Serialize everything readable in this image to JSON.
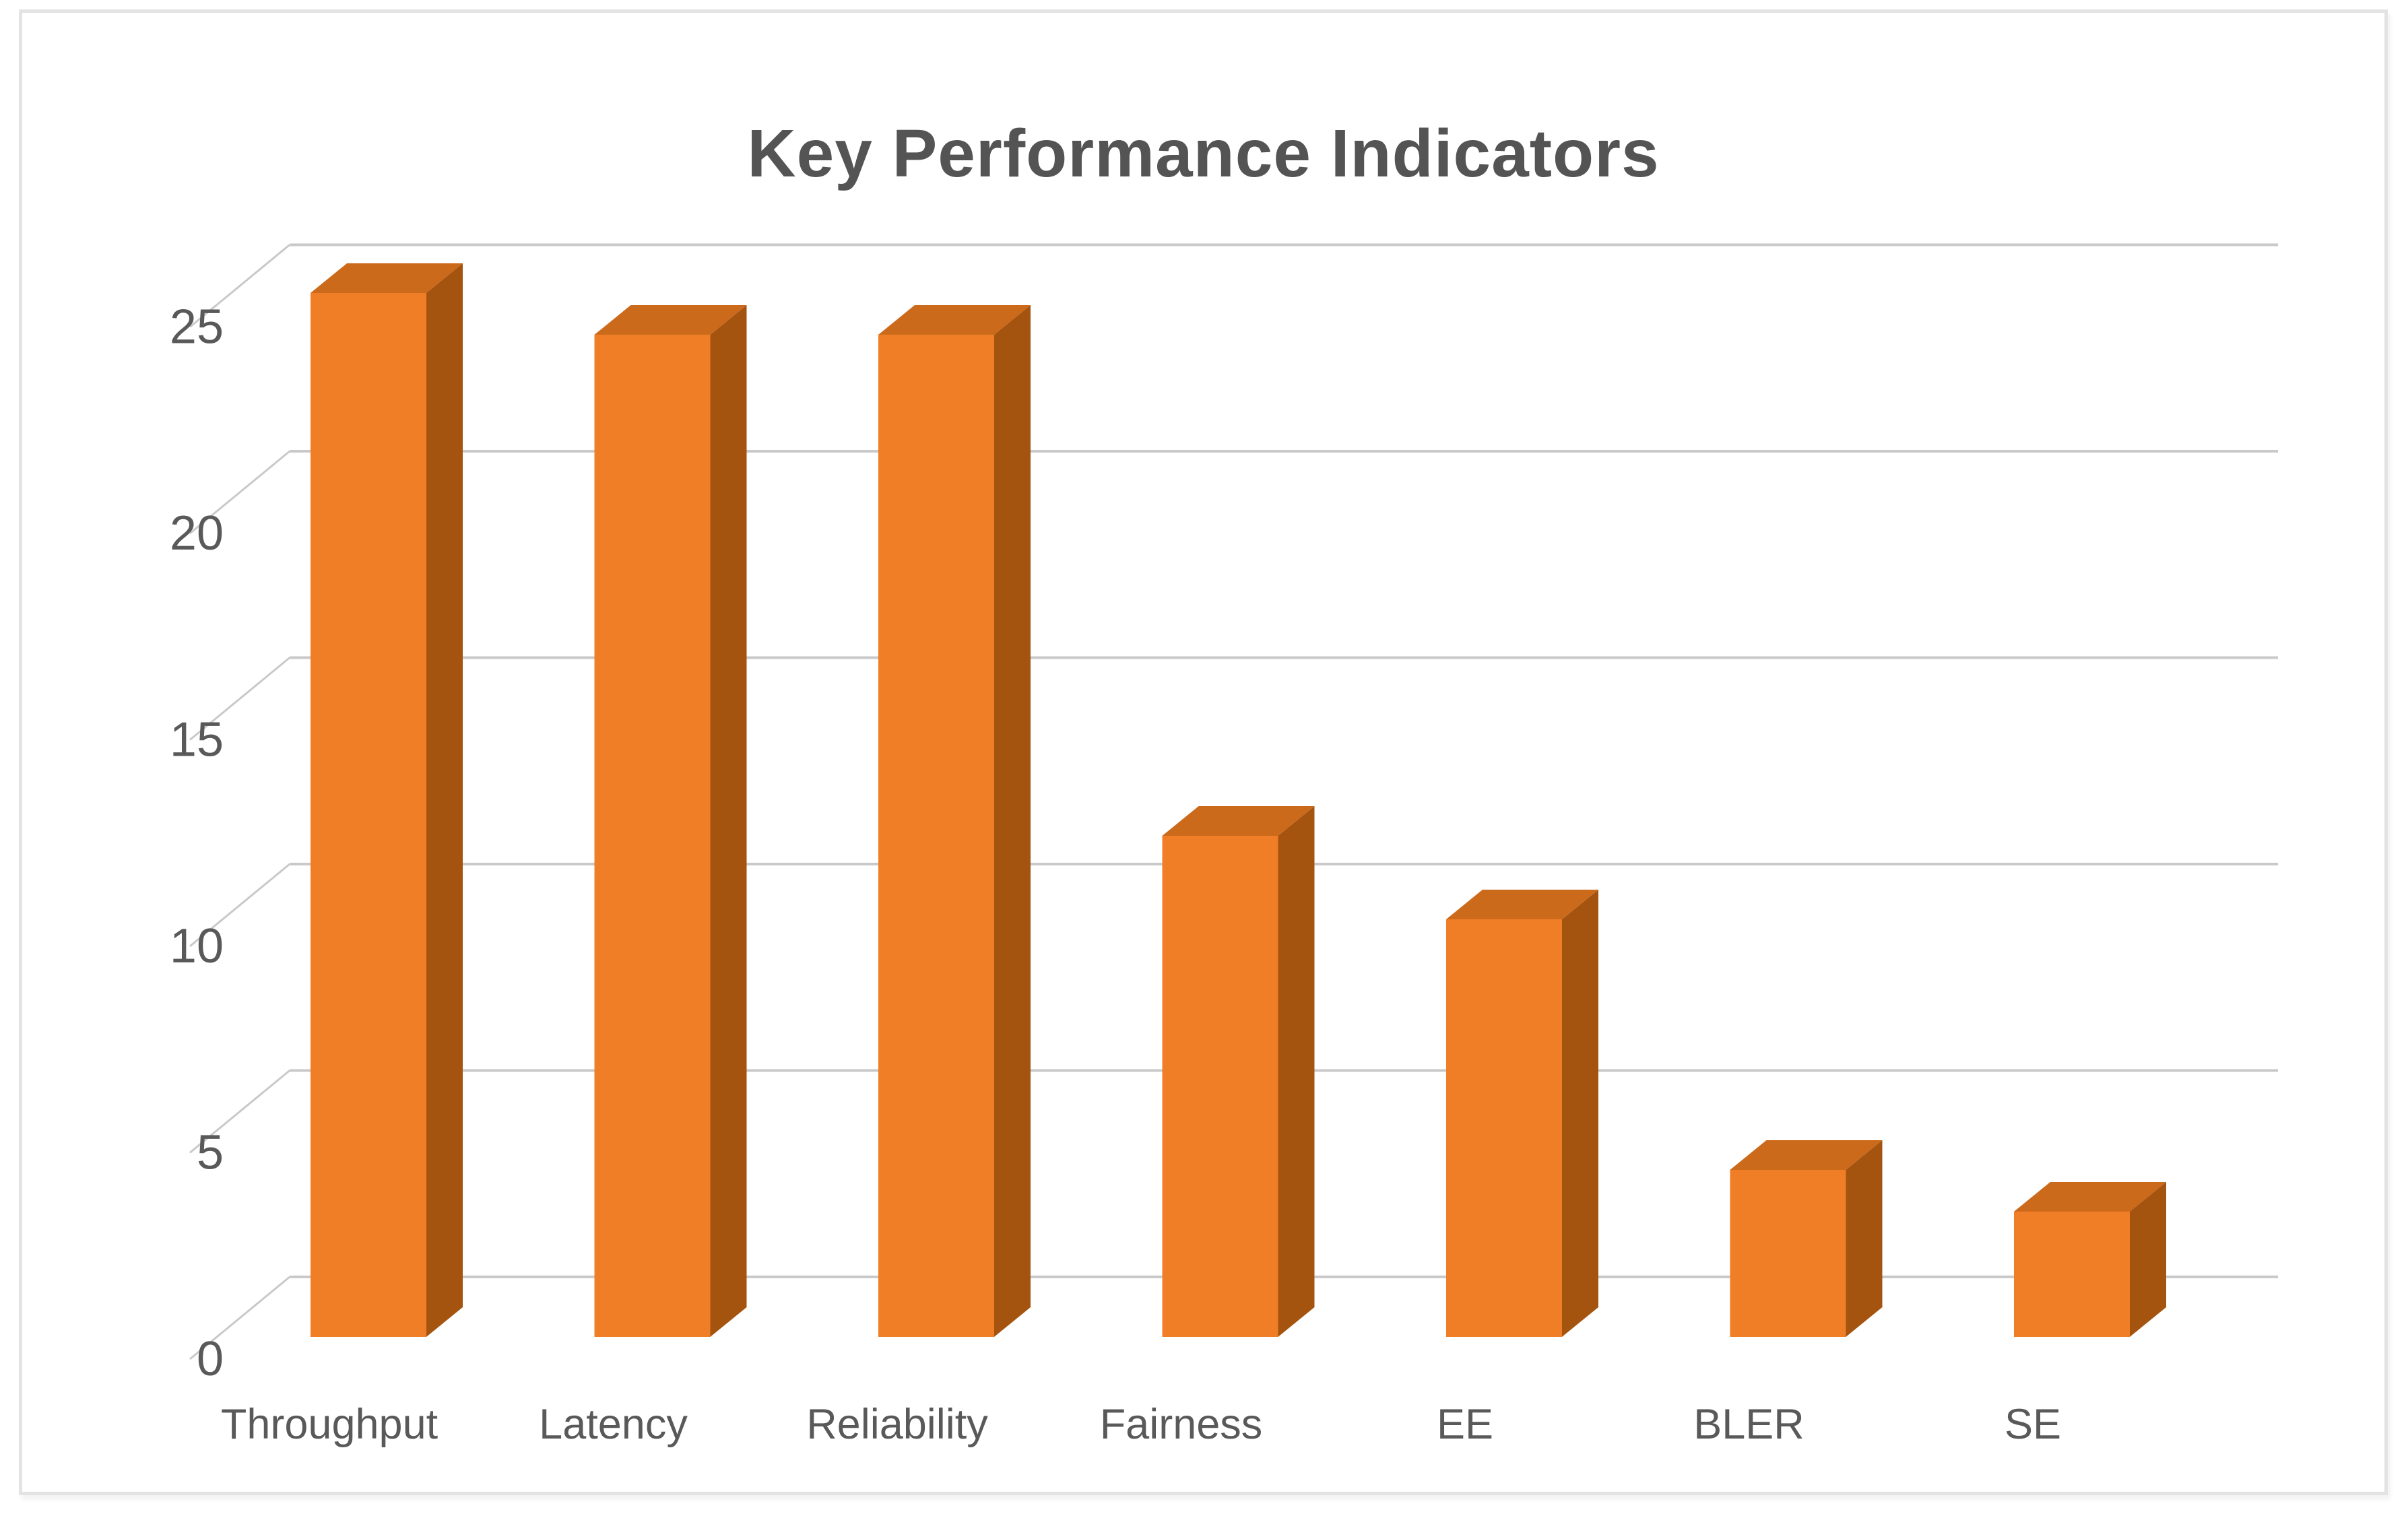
{
  "chart_data": {
    "type": "bar",
    "style": "3d-column",
    "title": "Key Performance Indicators",
    "categories": [
      "Throughput",
      "Latency",
      "Reliability",
      "Fairness",
      "EE",
      "BLER",
      "SE"
    ],
    "values": [
      25,
      24,
      24,
      12,
      10,
      4,
      3
    ],
    "xlabel": "",
    "ylabel": "",
    "ylim": [
      0,
      25
    ],
    "yticks": [
      0,
      5,
      10,
      15,
      20,
      25
    ],
    "grid": true,
    "legend": false,
    "colors": {
      "bar_front": "#f07e26",
      "bar_top": "#cc6a1c",
      "bar_side": "#a4540f",
      "gridline": "#c9c9c9",
      "axis_text": "#595959",
      "title_text": "#545454",
      "card_border": "#e3e3e3",
      "background": "#ffffff"
    }
  }
}
